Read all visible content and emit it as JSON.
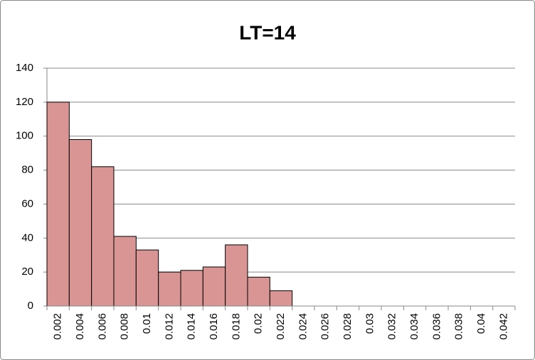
{
  "chart_data": {
    "type": "bar",
    "title": "LT=14",
    "categories": [
      "0.002",
      "0.004",
      "0.006",
      "0.008",
      "0.01",
      "0.012",
      "0.014",
      "0.016",
      "0.018",
      "0.02",
      "0.022",
      "0.024",
      "0.026",
      "0.028",
      "0.03",
      "0.032",
      "0.034",
      "0.036",
      "0.038",
      "0.04",
      "0.042"
    ],
    "values": [
      120,
      98,
      82,
      41,
      33,
      20,
      21,
      23,
      36,
      17,
      9,
      0,
      0,
      0,
      0,
      0,
      0,
      0,
      0,
      0,
      0
    ],
    "color": "#d99594",
    "ylim": [
      0,
      140
    ],
    "yticks": [
      0,
      20,
      40,
      60,
      80,
      100,
      120,
      140
    ],
    "grid": true
  }
}
